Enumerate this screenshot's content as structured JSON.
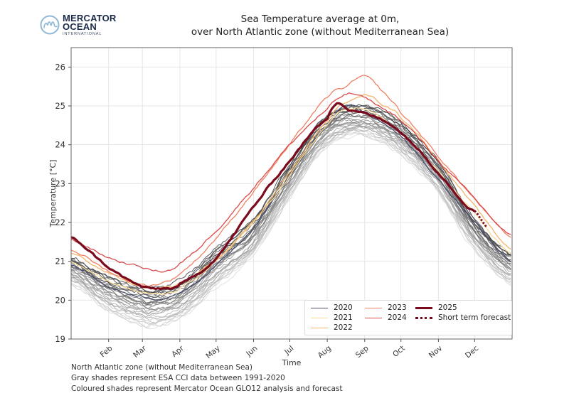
{
  "logo": {
    "line1": "MERCATOR",
    "line2": "OCEAN",
    "line3": "INTERNATIONAL",
    "icon": "mercator-m-circle-logo"
  },
  "footer": {
    "lines": [
      "North Atlantic zone (without Mediterranean Sea)",
      "Gray shades represent ESA CCI data between 1991-2020",
      "Coloured shades represent Mercator Ocean GLO12 analysis and forecast"
    ]
  },
  "legend": {
    "items": [
      {
        "label": "2020",
        "color": "#4a4f6a",
        "style": "solid"
      },
      {
        "label": "2021",
        "color": "#f9dc9a",
        "style": "solid"
      },
      {
        "label": "2022",
        "color": "#f2b56b",
        "style": "solid"
      },
      {
        "label": "2023",
        "color": "#ef8063",
        "style": "solid"
      },
      {
        "label": "2024",
        "color": "#d94a4a",
        "style": "solid"
      },
      {
        "label": "2025",
        "color": "#7a0a1e",
        "style": "thick"
      },
      {
        "label": "Short term forecast",
        "color": "#7a0a1e",
        "style": "dotted"
      }
    ]
  },
  "chart_data": {
    "type": "line",
    "title": "Sea Temperature average at 0m,\nover North Atlantic zone (without Mediterranean Sea)",
    "title_lines": [
      "Sea Temperature average at 0m,",
      "over North Atlantic zone (without Mediterranean Sea)"
    ],
    "xlabel": "Time",
    "ylabel": "Temperature [°C]",
    "ylim": [
      19,
      26.5
    ],
    "xlim_day_of_year": [
      0,
      365
    ],
    "yticks": [
      19,
      20,
      21,
      22,
      23,
      24,
      25,
      26
    ],
    "xticks": [
      {
        "label": "Feb",
        "day": 31
      },
      {
        "label": "Mar",
        "day": 59
      },
      {
        "label": "Apr",
        "day": 90
      },
      {
        "label": "May",
        "day": 120
      },
      {
        "label": "Jun",
        "day": 151
      },
      {
        "label": "Jul",
        "day": 181
      },
      {
        "label": "Aug",
        "day": 212
      },
      {
        "label": "Sep",
        "day": 243
      },
      {
        "label": "Oct",
        "day": 273
      },
      {
        "label": "Nov",
        "day": 304
      },
      {
        "label": "Dec",
        "day": 334
      }
    ],
    "grid": true,
    "legend_position": "lower-right",
    "climatology": {
      "description": "ESA CCI 1991-2020 (gray shades)",
      "years": 30,
      "min_at_day": 65,
      "max_at_day": 243,
      "min_range": [
        19.3,
        20.3
      ],
      "max_range": [
        24.2,
        25.0
      ],
      "start_range": [
        20.4,
        21.1
      ],
      "end_range": [
        20.4,
        21.2
      ]
    },
    "series": [
      {
        "name": "2020",
        "color": "#4a4f6a",
        "x": [
          0,
          31,
          59,
          75,
          90,
          120,
          151,
          181,
          212,
          228,
          243,
          273,
          304,
          334,
          365
        ],
        "values": [
          20.9,
          20.35,
          20.1,
          20.05,
          20.2,
          20.9,
          21.9,
          23.2,
          24.5,
          25.0,
          24.8,
          24.2,
          23.1,
          22.0,
          21.0
        ]
      },
      {
        "name": "2021",
        "color": "#f9dc9a",
        "x": [
          0,
          31,
          59,
          75,
          90,
          120,
          151,
          181,
          212,
          228,
          243,
          273,
          304,
          334,
          365
        ],
        "values": [
          21.0,
          20.5,
          20.2,
          20.15,
          20.3,
          21.0,
          22.0,
          23.2,
          24.5,
          24.9,
          24.9,
          24.3,
          23.3,
          22.2,
          21.2
        ]
      },
      {
        "name": "2022",
        "color": "#f2b56b",
        "x": [
          0,
          31,
          59,
          75,
          90,
          120,
          151,
          181,
          212,
          228,
          243,
          260,
          273,
          304,
          334,
          365
        ],
        "values": [
          21.2,
          20.7,
          20.35,
          20.3,
          20.45,
          21.05,
          22.05,
          23.3,
          24.6,
          25.1,
          25.3,
          25.0,
          24.7,
          23.6,
          22.4,
          21.3
        ]
      },
      {
        "name": "2023",
        "color": "#ef8063",
        "x": [
          0,
          31,
          59,
          75,
          90,
          120,
          151,
          181,
          212,
          228,
          243,
          260,
          273,
          304,
          334,
          365
        ],
        "values": [
          21.3,
          20.75,
          20.4,
          20.45,
          20.7,
          21.6,
          22.8,
          24.0,
          25.2,
          25.5,
          25.75,
          25.3,
          24.8,
          23.7,
          22.6,
          21.6
        ]
      },
      {
        "name": "2024",
        "color": "#d94a4a",
        "x": [
          0,
          31,
          59,
          75,
          90,
          120,
          151,
          181,
          212,
          228,
          243,
          260,
          273,
          304,
          334,
          365
        ],
        "values": [
          21.55,
          21.1,
          20.85,
          20.75,
          20.95,
          21.8,
          22.9,
          24.0,
          24.9,
          25.3,
          25.2,
          24.9,
          24.6,
          23.6,
          22.6,
          21.65
        ]
      },
      {
        "name": "2025",
        "color": "#7a0a1e",
        "x": [
          0,
          31,
          59,
          75,
          90,
          120,
          151,
          181,
          212,
          220,
          230,
          243,
          260,
          273,
          304,
          334
        ],
        "values": [
          21.6,
          20.85,
          20.35,
          20.3,
          20.4,
          21.1,
          22.4,
          23.6,
          24.7,
          25.1,
          24.9,
          24.8,
          24.6,
          24.3,
          23.3,
          22.3
        ]
      },
      {
        "name": "Short term forecast",
        "color": "#7a0a1e",
        "style": "dotted",
        "x": [
          334,
          340,
          345
        ],
        "values": [
          22.3,
          22.05,
          21.85
        ]
      }
    ]
  }
}
